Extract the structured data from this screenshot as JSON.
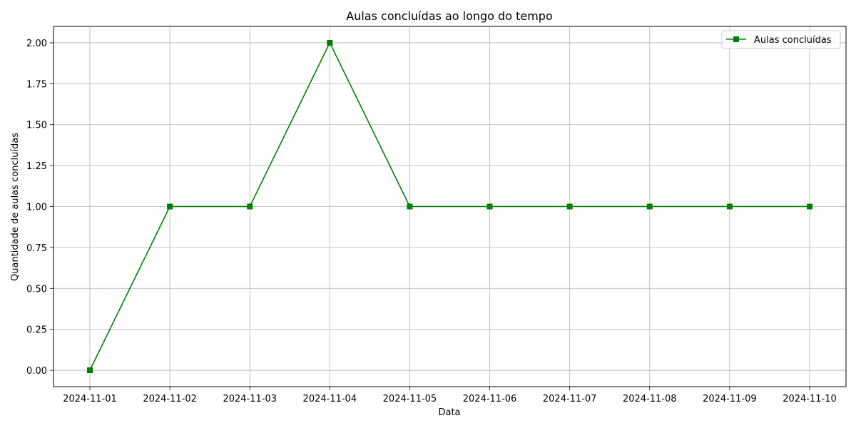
{
  "chart_data": {
    "type": "line",
    "title": "Aulas concluídas ao longo do tempo",
    "xlabel": "Data",
    "ylabel": "Quantidade de aulas concluídas",
    "categories": [
      "2024-11-01",
      "2024-11-02",
      "2024-11-03",
      "2024-11-04",
      "2024-11-05",
      "2024-11-06",
      "2024-11-07",
      "2024-11-08",
      "2024-11-09",
      "2024-11-10"
    ],
    "series": [
      {
        "name": "Aulas concluídas",
        "values": [
          0,
          1,
          1,
          2,
          1,
          1,
          1,
          1,
          1,
          1
        ],
        "color": "#008000",
        "marker": "square"
      }
    ],
    "ylim": [
      -0.1,
      2.1
    ],
    "yticks": [
      "0.00",
      "0.25",
      "0.50",
      "0.75",
      "1.00",
      "1.25",
      "1.50",
      "1.75",
      "2.00"
    ],
    "grid": true,
    "legend_position": "top-right"
  }
}
